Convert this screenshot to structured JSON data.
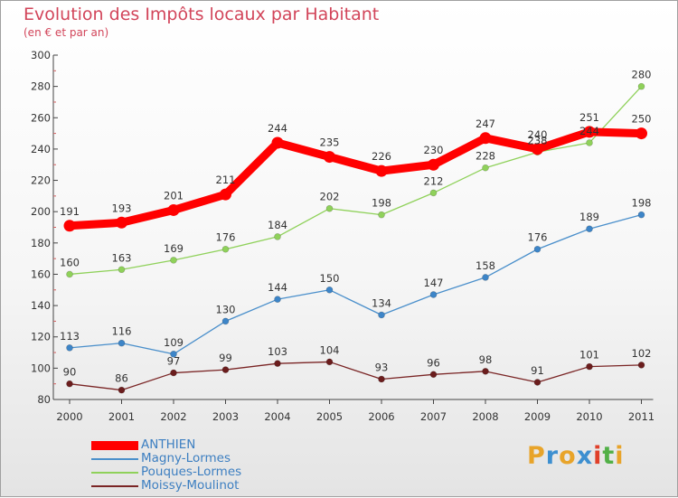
{
  "title": "Evolution des Impôts locaux par Habitant",
  "subtitle": "(en € et par an)",
  "logo": {
    "text": "Proxiti",
    "letters": [
      "P",
      "r",
      "o",
      "x",
      "i",
      "t",
      "i"
    ],
    "colors": [
      "#e8a42a",
      "#3d8fd0",
      "#e8a42a",
      "#3d8fd0",
      "#e0402a",
      "#52b047",
      "#e8a42a"
    ]
  },
  "chart_data": {
    "type": "line",
    "x": [
      "2000",
      "2001",
      "2002",
      "2003",
      "2004",
      "2005",
      "2006",
      "2007",
      "2008",
      "2009",
      "2010",
      "2011"
    ],
    "ylim": [
      80,
      300
    ],
    "yticks": [
      "80",
      "100",
      "120",
      "140",
      "160",
      "180",
      "200",
      "220",
      "240",
      "260",
      "280",
      "300"
    ],
    "grid": false,
    "legend": "bottom-left",
    "series": [
      {
        "name": "ANTHIEN",
        "color": "#ff0000",
        "values": [
          191,
          193,
          201,
          211,
          244,
          235,
          226,
          230,
          247,
          240,
          251,
          250
        ],
        "labels": [
          "191",
          "193",
          "201",
          "211",
          "244",
          "235",
          "226",
          "230",
          "247",
          "240",
          "251",
          "250"
        ]
      },
      {
        "name": "Magny-Lormes",
        "color": "#4a8fcb",
        "values": [
          113,
          116,
          109,
          130,
          144,
          150,
          134,
          147,
          158,
          176,
          189,
          198
        ],
        "labels": [
          "113",
          "116",
          "109",
          "130",
          "144",
          "150",
          "134",
          "147",
          "158",
          "176",
          "189",
          "198"
        ]
      },
      {
        "name": "Pouques-Lormes",
        "color": "#8fd15a",
        "values": [
          160,
          163,
          169,
          176,
          184,
          202,
          198,
          212,
          228,
          238,
          244,
          280
        ],
        "labels": [
          "160",
          "163",
          "169",
          "176",
          "184",
          "202",
          "198",
          "212",
          "228",
          "238",
          "244",
          "280"
        ]
      },
      {
        "name": "Moissy-Moulinot",
        "color": "#7a2525",
        "values": [
          90,
          86,
          97,
          99,
          103,
          104,
          93,
          96,
          98,
          91,
          101,
          102
        ],
        "labels": [
          "90",
          "86",
          "97",
          "99",
          "103",
          "104",
          "93",
          "96",
          "98",
          "91",
          "101",
          "102"
        ]
      }
    ]
  }
}
